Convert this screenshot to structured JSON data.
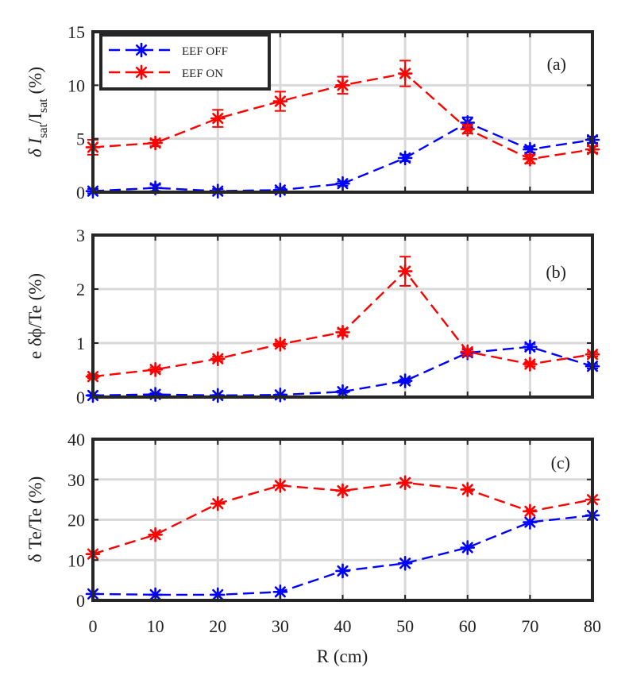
{
  "chart_data": {
    "type": "line",
    "x": [
      0,
      10,
      20,
      30,
      40,
      50,
      60,
      70,
      80
    ],
    "xlabel": "R (cm)",
    "xlim": [
      0,
      80
    ],
    "xticks": [
      "0",
      "10",
      "20",
      "30",
      "40",
      "50",
      "60",
      "70",
      "80"
    ],
    "legend": {
      "placement": "top-left",
      "entries": [
        "EEF OFF",
        "EEF ON"
      ]
    },
    "colors": {
      "EEF OFF": "#0000ff",
      "EEF ON": "#ff0000"
    },
    "panels": [
      {
        "panel_label": "(a)",
        "ylabel_main": "δ I",
        "ylabel_sub1": "sat",
        "ylabel_mid": "/I",
        "ylabel_sub2": "sat",
        "ylabel_tail": " (%)",
        "ylim": [
          0,
          15
        ],
        "yticks": [
          "0",
          "5",
          "10",
          "15"
        ],
        "series": [
          {
            "name": "EEF OFF",
            "values": [
              0.1,
              0.4,
              0.1,
              0.2,
              0.8,
              3.2,
              6.5,
              4.0,
              4.9
            ],
            "errors": [
              0.2,
              0.3,
              0.2,
              0.2,
              0.2,
              0.3,
              0.5,
              0.3,
              0.3
            ]
          },
          {
            "name": "EEF ON",
            "values": [
              4.2,
              4.6,
              6.9,
              8.5,
              10.0,
              11.1,
              5.9,
              3.1,
              4.0
            ],
            "errors": [
              0.7,
              0.3,
              0.8,
              0.9,
              0.8,
              1.2,
              0.4,
              0.4,
              0.3
            ]
          }
        ]
      },
      {
        "panel_label": "(b)",
        "ylabel": "e δϕ/Te (%)",
        "ylim": [
          0,
          3
        ],
        "yticks": [
          "0",
          "1",
          "2",
          "3"
        ],
        "series": [
          {
            "name": "EEF OFF",
            "values": [
              0.03,
              0.05,
              0.03,
              0.04,
              0.1,
              0.3,
              0.82,
              0.93,
              0.57
            ],
            "errors": [
              0.01,
              0.02,
              0.01,
              0.01,
              0.02,
              0.03,
              0.06,
              0.05,
              0.04
            ]
          },
          {
            "name": "EEF ON",
            "values": [
              0.38,
              0.51,
              0.71,
              0.98,
              1.2,
              2.33,
              0.84,
              0.61,
              0.79
            ],
            "errors": [
              0.03,
              0.04,
              0.04,
              0.04,
              0.06,
              0.27,
              0.05,
              0.04,
              0.04
            ]
          }
        ]
      },
      {
        "panel_label": "(c)",
        "ylabel": "δ Te/Te (%)",
        "ylim": [
          0,
          40
        ],
        "yticks": [
          "0",
          "10",
          "20",
          "30",
          "40"
        ],
        "series": [
          {
            "name": "EEF OFF",
            "values": [
              1.6,
              1.4,
              1.4,
              2.1,
              7.3,
              9.2,
              13.1,
              19.4,
              21.1
            ]
          },
          {
            "name": "EEF ON",
            "values": [
              11.5,
              16.3,
              24.0,
              28.5,
              27.2,
              29.2,
              27.5,
              22.1,
              25.0
            ]
          }
        ]
      }
    ]
  }
}
